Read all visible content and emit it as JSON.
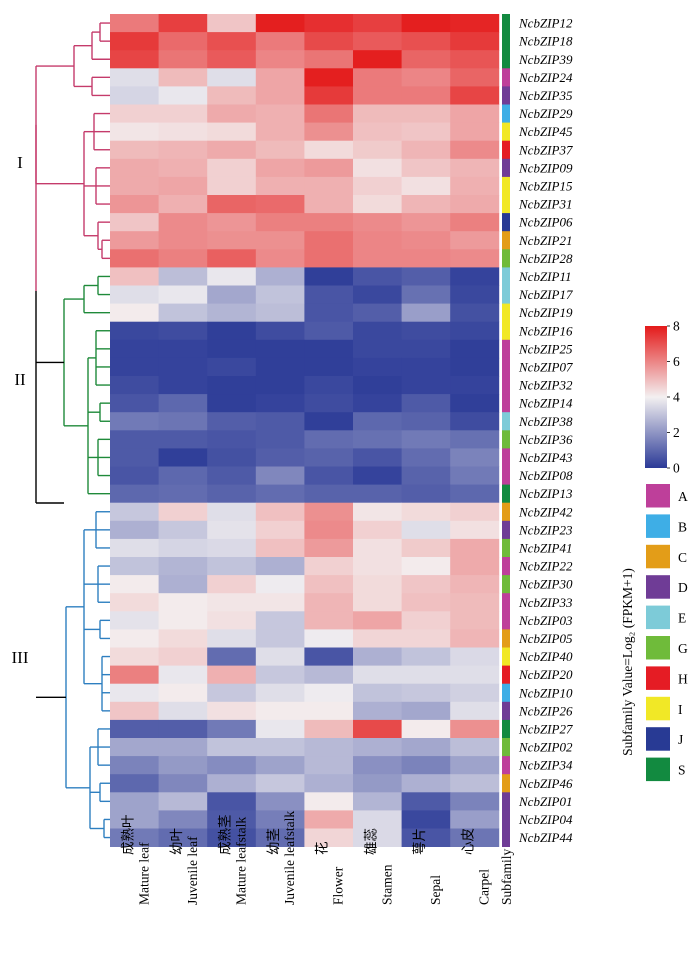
{
  "chart_data": {
    "type": "heatmap",
    "genes": [
      "NcbZIP12",
      "NcbZIP18",
      "NcbZIP39",
      "NcbZIP24",
      "NcbZIP35",
      "NcbZIP29",
      "NcbZIP45",
      "NcbZIP37",
      "NcbZIP09",
      "NcbZIP15",
      "NcbZIP31",
      "NcbZIP06",
      "NcbZIP21",
      "NcbZIP28",
      "NcbZIP11",
      "NcbZIP17",
      "NcbZIP19",
      "NcbZIP16",
      "NcbZIP25",
      "NcbZIP07",
      "NcbZIP32",
      "NcbZIP14",
      "NcbZIP38",
      "NcbZIP36",
      "NcbZIP43",
      "NcbZIP08",
      "NcbZIP13",
      "NcbZIP42",
      "NcbZIP23",
      "NcbZIP41",
      "NcbZIP22",
      "NcbZIP30",
      "NcbZIP33",
      "NcbZIP03",
      "NcbZIP05",
      "NcbZIP40",
      "NcbZIP20",
      "NcbZIP10",
      "NcbZIP26",
      "NcbZIP27",
      "NcbZIP02",
      "NcbZIP34",
      "NcbZIP46",
      "NcbZIP01",
      "NcbZIP04",
      "NcbZIP44"
    ],
    "tissues": [
      {
        "cn": "成熟叶",
        "en": "Mature leaf"
      },
      {
        "cn": "幼叶",
        "en": "Juvenile leaf"
      },
      {
        "cn": "成熟茎",
        "en": "Mature leafstalk"
      },
      {
        "cn": "幼茎",
        "en": "Juvenile leafstalk"
      },
      {
        "cn": "花",
        "en": "Flower"
      },
      {
        "cn": "雄蕊",
        "en": "Stamen"
      },
      {
        "cn": "萼片",
        "en": "Sepal"
      },
      {
        "cn": "心皮",
        "en": "Carpel"
      }
    ],
    "values": [
      [
        6.2,
        7.3,
        4.8,
        7.9,
        7.6,
        7.3,
        7.9,
        7.8
      ],
      [
        7.4,
        6.5,
        7.0,
        6.2,
        7.1,
        6.8,
        7.0,
        7.4
      ],
      [
        7.2,
        6.3,
        6.8,
        6.0,
        6.3,
        7.9,
        6.6,
        6.9
      ],
      [
        3.6,
        5.0,
        3.6,
        5.4,
        7.9,
        6.2,
        6.0,
        6.6
      ],
      [
        3.4,
        3.8,
        5.0,
        5.4,
        7.4,
        6.2,
        6.2,
        7.2
      ],
      [
        4.6,
        4.6,
        5.3,
        5.2,
        6.3,
        5.0,
        5.0,
        5.4
      ],
      [
        4.2,
        4.3,
        4.4,
        5.2,
        5.8,
        4.9,
        4.8,
        5.4
      ],
      [
        5.0,
        5.1,
        5.3,
        5.0,
        4.4,
        4.7,
        5.1,
        5.9
      ],
      [
        5.3,
        5.2,
        4.6,
        5.4,
        5.6,
        4.3,
        4.8,
        5.1
      ],
      [
        5.3,
        5.4,
        4.6,
        5.2,
        5.2,
        4.6,
        4.3,
        5.2
      ],
      [
        5.7,
        5.2,
        6.6,
        6.5,
        5.2,
        4.4,
        5.1,
        5.3
      ],
      [
        4.8,
        5.9,
        5.7,
        6.1,
        6.1,
        5.9,
        5.7,
        6.1
      ],
      [
        5.6,
        5.9,
        5.8,
        5.8,
        6.4,
        6.0,
        5.9,
        5.6
      ],
      [
        6.4,
        6.1,
        6.7,
        5.9,
        6.4,
        6.0,
        6.0,
        5.9
      ],
      [
        4.9,
        2.9,
        3.8,
        2.6,
        0.1,
        0.6,
        0.8,
        0.2
      ],
      [
        3.6,
        3.8,
        2.4,
        3.0,
        0.6,
        0.3,
        1.2,
        0.3
      ],
      [
        4.1,
        3.0,
        2.7,
        2.9,
        0.6,
        0.8,
        2.2,
        0.5
      ],
      [
        0.3,
        0.4,
        0.1,
        0.4,
        0.7,
        0.3,
        0.4,
        0.3
      ],
      [
        0.2,
        0.2,
        0.1,
        0.1,
        0.1,
        0.3,
        0.3,
        0.1
      ],
      [
        0.2,
        0.2,
        0.3,
        0.1,
        0.1,
        0.2,
        0.2,
        0.1
      ],
      [
        0.4,
        0.2,
        0.1,
        0.1,
        0.3,
        0.1,
        0.2,
        0.2
      ],
      [
        0.6,
        1.0,
        0.1,
        0.2,
        0.4,
        0.2,
        0.7,
        0.1
      ],
      [
        1.4,
        1.3,
        0.8,
        0.7,
        0.1,
        1.0,
        0.9,
        0.4
      ],
      [
        0.7,
        0.7,
        0.6,
        0.7,
        1.1,
        1.2,
        1.4,
        1.2
      ],
      [
        0.7,
        0.1,
        0.5,
        0.8,
        0.9,
        0.6,
        1.1,
        1.6
      ],
      [
        0.6,
        1.0,
        0.7,
        1.7,
        0.6,
        0.2,
        0.9,
        1.4
      ],
      [
        1.0,
        1.1,
        0.9,
        1.1,
        0.9,
        0.9,
        0.8,
        1.0
      ],
      [
        3.1,
        4.6,
        3.6,
        4.9,
        5.8,
        4.2,
        4.4,
        4.6
      ],
      [
        2.6,
        3.1,
        3.7,
        4.6,
        5.9,
        4.6,
        3.6,
        4.3
      ],
      [
        3.6,
        3.4,
        3.5,
        4.9,
        5.6,
        4.3,
        4.7,
        5.3
      ],
      [
        3.0,
        2.7,
        3.0,
        2.6,
        4.6,
        4.3,
        4.1,
        5.3
      ],
      [
        4.1,
        2.6,
        4.6,
        3.9,
        4.9,
        4.4,
        4.8,
        5.1
      ],
      [
        4.4,
        4.1,
        4.2,
        4.2,
        5.1,
        4.4,
        4.9,
        5.0
      ],
      [
        3.7,
        4.1,
        4.3,
        3.1,
        5.1,
        5.4,
        4.6,
        5.0
      ],
      [
        4.1,
        4.4,
        3.6,
        3.1,
        3.9,
        4.5,
        4.5,
        5.1
      ],
      [
        4.4,
        4.6,
        1.1,
        3.6,
        0.6,
        2.6,
        3.0,
        3.5
      ],
      [
        6.1,
        3.8,
        5.2,
        3.1,
        2.8,
        3.6,
        3.6,
        3.6
      ],
      [
        3.8,
        4.1,
        3.1,
        3.6,
        3.9,
        3.0,
        3.1,
        3.3
      ],
      [
        4.8,
        3.6,
        4.3,
        4.1,
        4.1,
        2.6,
        2.4,
        3.6
      ],
      [
        0.8,
        0.8,
        1.4,
        3.8,
        5.0,
        7.1,
        4.1,
        5.8
      ],
      [
        2.4,
        2.4,
        3.0,
        3.0,
        2.8,
        2.6,
        2.4,
        2.9
      ],
      [
        1.6,
        2.1,
        1.8,
        2.3,
        2.8,
        1.9,
        1.6,
        2.3
      ],
      [
        1.0,
        1.7,
        2.6,
        3.1,
        2.6,
        2.1,
        2.6,
        2.9
      ],
      [
        2.3,
        2.8,
        0.6,
        1.9,
        4.1,
        2.7,
        0.7,
        1.6
      ],
      [
        2.3,
        1.7,
        0.7,
        1.5,
        5.3,
        3.5,
        0.3,
        2.2
      ],
      [
        1.4,
        1.1,
        0.5,
        1.1,
        4.5,
        3.5,
        0.6,
        1.3
      ]
    ],
    "colorbar": {
      "ticks": [
        0,
        2,
        4,
        6,
        8
      ],
      "range": [
        0,
        8
      ],
      "stops": [
        "#2b3a97",
        "#f3f0f1",
        "#e41a1a"
      ]
    },
    "clades": [
      {
        "label": "I",
        "color": "#c53b6b",
        "rows": [
          0,
          13
        ]
      },
      {
        "label": "II",
        "color": "#1f8a3a",
        "rows": [
          14,
          26
        ]
      },
      {
        "label": "III",
        "color": "#2e7fc0",
        "rows": [
          27,
          45
        ]
      }
    ],
    "dendrogram_root_color": "#000000",
    "subfamily_per_gene": [
      "S",
      "S",
      "S",
      "A",
      "D",
      "B",
      "I",
      "H",
      "D",
      "I",
      "I",
      "J",
      "C",
      "G",
      "E",
      "E",
      "I",
      "I",
      "A",
      "A",
      "A",
      "A",
      "E",
      "G",
      "A",
      "A",
      "S",
      "C",
      "D",
      "G",
      "A",
      "G",
      "A",
      "A",
      "C",
      "I",
      "H",
      "B",
      "D",
      "S",
      "G",
      "A",
      "C",
      "D",
      "D",
      "D"
    ],
    "subfamily_legend": [
      {
        "key": "A",
        "color": "#be3f9a"
      },
      {
        "key": "B",
        "color": "#3eaee6"
      },
      {
        "key": "C",
        "color": "#e39d18"
      },
      {
        "key": "D",
        "color": "#6f3c96"
      },
      {
        "key": "E",
        "color": "#7dcbd8"
      },
      {
        "key": "G",
        "color": "#6fbb3a"
      },
      {
        "key": "H",
        "color": "#e51c24"
      },
      {
        "key": "I",
        "color": "#f1e826"
      },
      {
        "key": "J",
        "color": "#283a94"
      },
      {
        "key": "S",
        "color": "#128a40"
      }
    ],
    "subfamily_axis_label": "Subfamily",
    "value_axis_label": "Subfamily Value=Log₂ (FPKM+1)"
  }
}
